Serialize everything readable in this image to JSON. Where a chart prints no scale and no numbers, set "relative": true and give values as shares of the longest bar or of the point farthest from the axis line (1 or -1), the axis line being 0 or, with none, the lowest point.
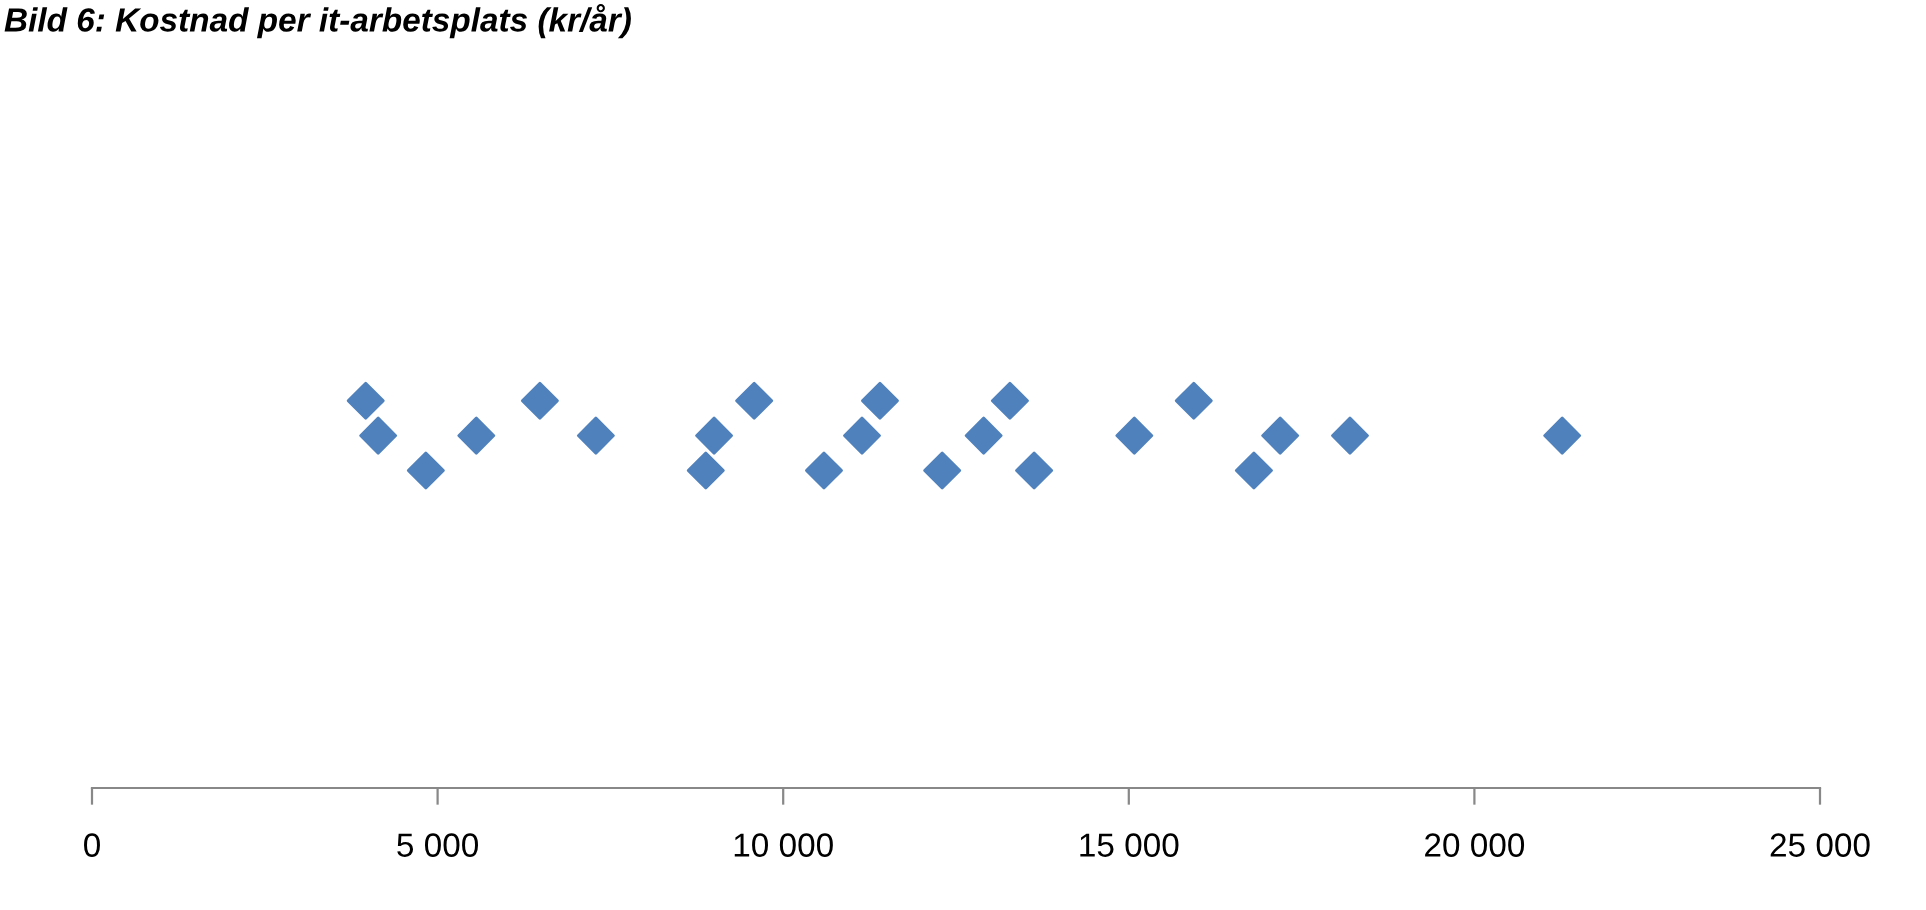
{
  "chart_data": {
    "type": "scatter",
    "title": "Bild 6: Kostnad per it-arbetsplats (kr/år)",
    "relative": true,
    "x": [
      3960,
      4140,
      4830,
      5560,
      6480,
      7290,
      8880,
      9000,
      9580,
      10590,
      11140,
      11400,
      12300,
      12900,
      13280,
      13630,
      15080,
      15940,
      16810,
      17190,
      18200,
      21270
    ],
    "series": [
      {
        "color": "#4f81bd",
        "values": [
          1,
          0.91,
          0.82,
          0.91,
          1,
          0.91,
          0.82,
          0.91,
          1,
          0.82,
          0.91,
          1,
          0.82,
          0.91,
          1,
          0.82,
          0.91,
          1,
          0.82,
          0.91,
          0.91,
          0.91
        ]
      }
    ],
    "marker": "diamond",
    "xlim": [
      0,
      25000
    ],
    "xticks": [
      {
        "value": 0,
        "label": "0"
      },
      {
        "value": 5000,
        "label": "5 000"
      },
      {
        "value": 10000,
        "label": "10 000"
      },
      {
        "value": 15000,
        "label": "15 000"
      },
      {
        "value": 20000,
        "label": "20 000"
      },
      {
        "value": 25000,
        "label": "25 000"
      }
    ],
    "grid": false,
    "legend": false
  }
}
